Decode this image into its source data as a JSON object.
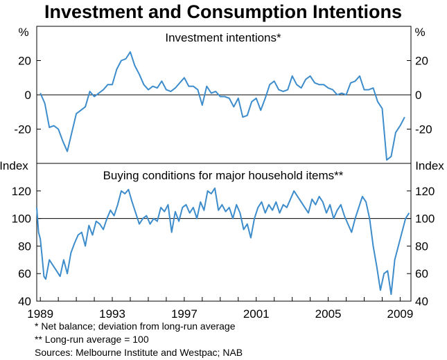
{
  "figure_title": "Investment and Consumption Intentions",
  "notes": {
    "note1": "*    Net balance; deviation from long-run average",
    "note2": "**   Long-run average = 100",
    "sources": "Sources: Melbourne Institute and Westpac; NAB"
  },
  "colors": {
    "line": "#3d8ccc",
    "axis": "#000000",
    "refline": "#000000"
  },
  "chart_data": [
    {
      "type": "line",
      "title": "Investment intentions*",
      "unit_left": "%",
      "unit_right": "%",
      "ylim": [
        -40,
        40
      ],
      "yticks": [
        -20,
        0,
        20
      ],
      "ytick_labels": [
        "-20",
        "0",
        "20"
      ],
      "zero_line": 0,
      "series": [
        {
          "name": "Investment intentions",
          "points": [
            [
              1989.0,
              1
            ],
            [
              1989.25,
              -5
            ],
            [
              1989.5,
              -19
            ],
            [
              1989.75,
              -18
            ],
            [
              1990.0,
              -20
            ],
            [
              1990.25,
              -27
            ],
            [
              1990.5,
              -33
            ],
            [
              1990.75,
              -22
            ],
            [
              1991.0,
              -11
            ],
            [
              1991.25,
              -9
            ],
            [
              1991.5,
              -7
            ],
            [
              1991.75,
              2
            ],
            [
              1992.0,
              -1
            ],
            [
              1992.25,
              1
            ],
            [
              1992.5,
              3
            ],
            [
              1992.75,
              6
            ],
            [
              1993.0,
              6
            ],
            [
              1993.25,
              15
            ],
            [
              1993.5,
              20
            ],
            [
              1993.75,
              21
            ],
            [
              1994.0,
              25
            ],
            [
              1994.25,
              17
            ],
            [
              1994.5,
              12
            ],
            [
              1994.75,
              6
            ],
            [
              1995.0,
              3
            ],
            [
              1995.25,
              5
            ],
            [
              1995.5,
              4
            ],
            [
              1995.75,
              8
            ],
            [
              1996.0,
              3
            ],
            [
              1996.25,
              2
            ],
            [
              1996.5,
              4
            ],
            [
              1996.75,
              7
            ],
            [
              1997.0,
              10
            ],
            [
              1997.25,
              5
            ],
            [
              1997.5,
              5
            ],
            [
              1997.75,
              3
            ],
            [
              1998.0,
              -6
            ],
            [
              1998.25,
              5
            ],
            [
              1998.5,
              1
            ],
            [
              1998.75,
              2
            ],
            [
              1999.0,
              -1
            ],
            [
              1999.25,
              -1
            ],
            [
              1999.5,
              -2
            ],
            [
              1999.75,
              -7
            ],
            [
              2000.0,
              -2
            ],
            [
              2000.25,
              -13
            ],
            [
              2000.5,
              -12
            ],
            [
              2000.75,
              -4
            ],
            [
              2001.0,
              -2
            ],
            [
              2001.25,
              -9
            ],
            [
              2001.5,
              -2
            ],
            [
              2001.75,
              6
            ],
            [
              2002.0,
              8
            ],
            [
              2002.25,
              3
            ],
            [
              2002.5,
              2
            ],
            [
              2002.75,
              3
            ],
            [
              2003.0,
              11
            ],
            [
              2003.25,
              6
            ],
            [
              2003.5,
              4
            ],
            [
              2003.75,
              9
            ],
            [
              2004.0,
              11
            ],
            [
              2004.25,
              7
            ],
            [
              2004.5,
              6
            ],
            [
              2004.75,
              6
            ],
            [
              2005.0,
              4
            ],
            [
              2005.25,
              3
            ],
            [
              2005.5,
              0
            ],
            [
              2005.75,
              1
            ],
            [
              2006.0,
              0
            ],
            [
              2006.25,
              7
            ],
            [
              2006.5,
              8
            ],
            [
              2006.75,
              11
            ],
            [
              2007.0,
              3
            ],
            [
              2007.25,
              3
            ],
            [
              2007.5,
              4
            ],
            [
              2007.75,
              -4
            ],
            [
              2008.0,
              -8
            ],
            [
              2008.25,
              -38
            ],
            [
              2008.5,
              -36
            ],
            [
              2008.75,
              -22
            ],
            [
              2009.0,
              -18
            ],
            [
              2009.25,
              -13
            ]
          ]
        }
      ]
    },
    {
      "type": "line",
      "title": "Buying conditions for major household items**",
      "unit_left": "Index",
      "unit_right": "Index",
      "ylim": [
        40,
        140
      ],
      "yticks": [
        40,
        60,
        80,
        100,
        120
      ],
      "ytick_labels": [
        "40",
        "60",
        "80",
        "100",
        "120"
      ],
      "reference_line": 100,
      "xlim": [
        1988.8,
        2009.6
      ],
      "xticks": [
        1989,
        1993,
        1997,
        2001,
        2005,
        2009
      ],
      "xtick_labels": [
        "1989",
        "1993",
        "1997",
        "2001",
        "2005",
        "2009"
      ],
      "series": [
        {
          "name": "Buying conditions for major household items",
          "points": [
            [
              1988.8,
              108
            ],
            [
              1988.9,
              90
            ],
            [
              1989.0,
              85
            ],
            [
              1989.1,
              72
            ],
            [
              1989.2,
              58
            ],
            [
              1989.3,
              56
            ],
            [
              1989.5,
              70
            ],
            [
              1989.7,
              66
            ],
            [
              1989.9,
              62
            ],
            [
              1990.1,
              58
            ],
            [
              1990.3,
              70
            ],
            [
              1990.5,
              60
            ],
            [
              1990.7,
              75
            ],
            [
              1990.9,
              82
            ],
            [
              1991.1,
              88
            ],
            [
              1991.3,
              90
            ],
            [
              1991.5,
              80
            ],
            [
              1991.7,
              95
            ],
            [
              1991.9,
              88
            ],
            [
              1992.1,
              98
            ],
            [
              1992.3,
              96
            ],
            [
              1992.5,
              92
            ],
            [
              1992.7,
              100
            ],
            [
              1992.9,
              106
            ],
            [
              1993.1,
              102
            ],
            [
              1993.3,
              110
            ],
            [
              1993.5,
              120
            ],
            [
              1993.7,
              118
            ],
            [
              1993.9,
              121
            ],
            [
              1994.1,
              112
            ],
            [
              1994.3,
              104
            ],
            [
              1994.5,
              96
            ],
            [
              1994.7,
              100
            ],
            [
              1994.9,
              102
            ],
            [
              1995.1,
              96
            ],
            [
              1995.3,
              100
            ],
            [
              1995.5,
              98
            ],
            [
              1995.7,
              108
            ],
            [
              1995.9,
              105
            ],
            [
              1996.1,
              110
            ],
            [
              1996.3,
              90
            ],
            [
              1996.5,
              105
            ],
            [
              1996.7,
              98
            ],
            [
              1996.9,
              108
            ],
            [
              1997.1,
              110
            ],
            [
              1997.3,
              104
            ],
            [
              1997.5,
              108
            ],
            [
              1997.7,
              100
            ],
            [
              1997.9,
              112
            ],
            [
              1998.1,
              106
            ],
            [
              1998.3,
              120
            ],
            [
              1998.5,
              118
            ],
            [
              1998.7,
              122
            ],
            [
              1998.9,
              106
            ],
            [
              1999.1,
              110
            ],
            [
              1999.3,
              105
            ],
            [
              1999.5,
              108
            ],
            [
              1999.7,
              100
            ],
            [
              1999.9,
              110
            ],
            [
              2000.1,
              104
            ],
            [
              2000.3,
              92
            ],
            [
              2000.5,
              96
            ],
            [
              2000.7,
              86
            ],
            [
              2000.9,
              100
            ],
            [
              2001.1,
              108
            ],
            [
              2001.3,
              112
            ],
            [
              2001.5,
              104
            ],
            [
              2001.7,
              110
            ],
            [
              2001.9,
              106
            ],
            [
              2002.1,
              112
            ],
            [
              2002.3,
              104
            ],
            [
              2002.5,
              110
            ],
            [
              2002.7,
              108
            ],
            [
              2002.9,
              114
            ],
            [
              2003.1,
              120
            ],
            [
              2003.3,
              116
            ],
            [
              2003.5,
              112
            ],
            [
              2003.7,
              108
            ],
            [
              2003.9,
              104
            ],
            [
              2004.1,
              114
            ],
            [
              2004.3,
              110
            ],
            [
              2004.5,
              116
            ],
            [
              2004.7,
              112
            ],
            [
              2004.9,
              104
            ],
            [
              2005.1,
              110
            ],
            [
              2005.3,
              100
            ],
            [
              2005.5,
              106
            ],
            [
              2005.7,
              110
            ],
            [
              2005.9,
              102
            ],
            [
              2006.1,
              96
            ],
            [
              2006.3,
              90
            ],
            [
              2006.5,
              100
            ],
            [
              2006.7,
              108
            ],
            [
              2006.9,
              116
            ],
            [
              2007.1,
              112
            ],
            [
              2007.3,
              100
            ],
            [
              2007.5,
              80
            ],
            [
              2007.7,
              65
            ],
            [
              2007.9,
              48
            ],
            [
              2008.1,
              60
            ],
            [
              2008.3,
              62
            ],
            [
              2008.5,
              45
            ],
            [
              2008.7,
              70
            ],
            [
              2008.9,
              80
            ],
            [
              2009.1,
              90
            ],
            [
              2009.3,
              100
            ],
            [
              2009.5,
              104
            ]
          ]
        }
      ]
    }
  ]
}
